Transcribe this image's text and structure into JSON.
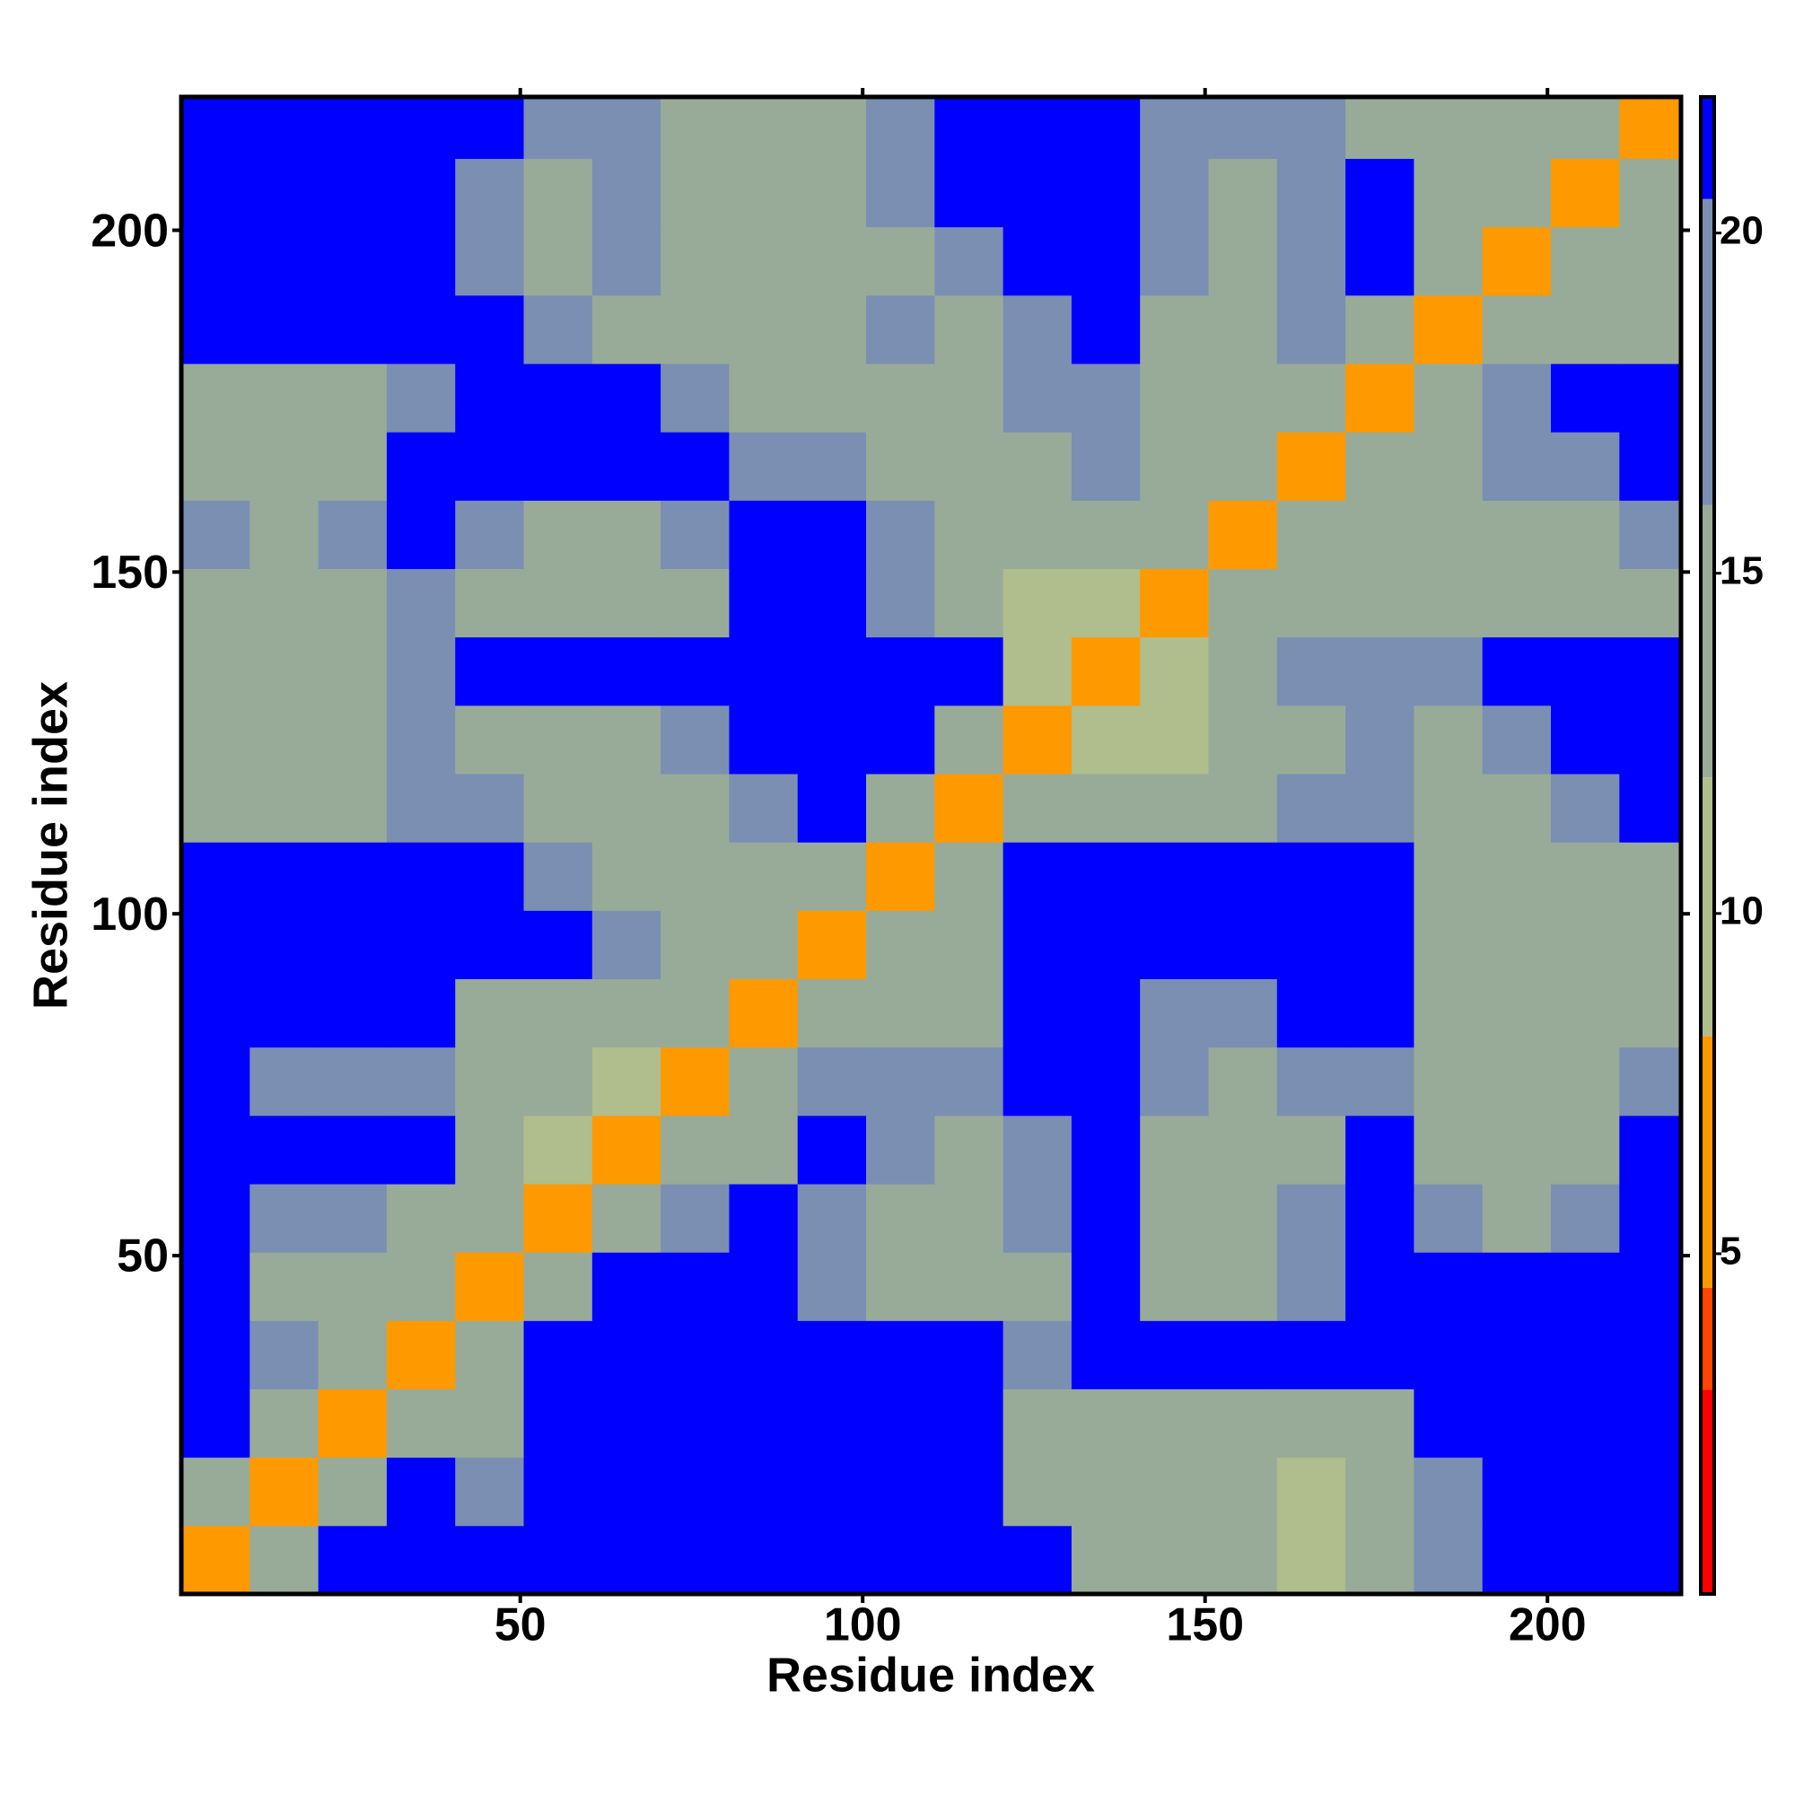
{
  "chart_data": {
    "type": "heatmap",
    "xlabel": "Residue index",
    "ylabel": "Residue index",
    "xlim": [
      0.5,
      219.5
    ],
    "ylim": [
      0.5,
      219.5
    ],
    "xticks": [
      50,
      100,
      150,
      200
    ],
    "yticks": [
      50,
      100,
      150,
      200
    ],
    "x_bins": [
      0.5,
      10.5,
      20.5,
      30.5,
      40.5,
      50.5,
      60.5,
      70.5,
      80.5,
      90.5,
      100.5,
      110.5,
      120.5,
      130.5,
      140.5,
      150.5,
      160.5,
      170.5,
      180.5,
      190.5,
      200.5,
      210.5,
      219.5
    ],
    "y_bins": [
      0.5,
      10.5,
      20.5,
      30.5,
      40.5,
      50.5,
      60.5,
      70.5,
      80.5,
      90.5,
      100.5,
      110.5,
      120.5,
      130.5,
      140.5,
      150.5,
      160.5,
      170.5,
      180.5,
      190.5,
      200.5,
      210.5,
      219.5
    ],
    "values": [
      [
        5,
        12,
        22,
        22,
        22,
        22,
        22,
        22,
        22,
        22,
        22,
        22,
        22,
        15,
        15,
        15,
        9,
        12,
        17,
        22,
        22,
        22
      ],
      [
        12,
        5,
        12,
        22,
        17,
        22,
        22,
        22,
        22,
        22,
        22,
        22,
        15,
        15,
        15,
        15,
        9,
        12,
        17,
        22,
        22,
        22
      ],
      [
        22,
        12,
        5,
        12,
        15,
        22,
        22,
        22,
        22,
        22,
        22,
        22,
        15,
        15,
        15,
        15,
        15,
        12,
        22,
        22,
        22,
        22
      ],
      [
        22,
        17,
        12,
        5,
        12,
        22,
        22,
        22,
        22,
        22,
        22,
        22,
        17,
        22,
        22,
        22,
        22,
        22,
        22,
        22,
        22,
        22
      ],
      [
        22,
        15,
        15,
        12,
        5,
        12,
        22,
        22,
        22,
        17,
        15,
        15,
        15,
        22,
        15,
        15,
        17,
        22,
        22,
        22,
        22,
        22
      ],
      [
        22,
        17,
        17,
        15,
        12,
        5,
        12,
        17,
        22,
        17,
        15,
        15,
        17,
        22,
        15,
        12,
        17,
        22,
        17,
        15,
        17,
        22
      ],
      [
        22,
        22,
        22,
        22,
        15,
        9,
        5,
        12,
        15,
        22,
        17,
        15,
        17,
        22,
        15,
        15,
        15,
        22,
        15,
        12,
        15,
        22
      ],
      [
        22,
        17,
        17,
        17,
        15,
        12,
        9,
        5,
        12,
        17,
        17,
        17,
        22,
        22,
        17,
        15,
        17,
        17,
        15,
        15,
        15,
        17
      ],
      [
        22,
        22,
        22,
        22,
        15,
        15,
        15,
        12,
        5,
        12,
        15,
        15,
        22,
        22,
        17,
        17,
        22,
        22,
        15,
        15,
        15,
        15
      ],
      [
        22,
        22,
        22,
        22,
        22,
        22,
        17,
        15,
        12,
        5,
        12,
        15,
        22,
        22,
        22,
        22,
        22,
        22,
        15,
        15,
        15,
        15
      ],
      [
        22,
        22,
        22,
        22,
        22,
        17,
        15,
        15,
        12,
        12,
        5,
        12,
        22,
        22,
        22,
        22,
        22,
        22,
        15,
        15,
        15,
        15
      ],
      [
        15,
        15,
        15,
        17,
        17,
        15,
        15,
        15,
        17,
        22,
        12,
        5,
        12,
        15,
        12,
        15,
        17,
        17,
        15,
        15,
        17,
        22
      ],
      [
        15,
        12,
        15,
        17,
        15,
        15,
        15,
        17,
        22,
        22,
        22,
        12,
        5,
        9,
        9,
        12,
        15,
        17,
        15,
        17,
        22,
        22
      ],
      [
        15,
        15,
        15,
        17,
        22,
        22,
        22,
        22,
        22,
        22,
        22,
        22,
        9,
        5,
        9,
        15,
        17,
        17,
        17,
        22,
        22,
        22
      ],
      [
        15,
        15,
        15,
        17,
        15,
        12,
        15,
        15,
        22,
        22,
        17,
        15,
        9,
        9,
        5,
        12,
        15,
        15,
        15,
        15,
        15,
        15
      ],
      [
        17,
        15,
        17,
        22,
        17,
        15,
        15,
        17,
        22,
        22,
        17,
        15,
        12,
        15,
        12,
        5,
        12,
        15,
        15,
        12,
        15,
        17
      ],
      [
        15,
        12,
        15,
        22,
        22,
        22,
        22,
        22,
        17,
        17,
        15,
        15,
        15,
        17,
        15,
        12,
        5,
        12,
        15,
        17,
        17,
        22
      ],
      [
        15,
        12,
        15,
        17,
        22,
        22,
        22,
        17,
        15,
        15,
        15,
        15,
        17,
        17,
        15,
        15,
        12,
        5,
        12,
        17,
        22,
        22
      ],
      [
        22,
        22,
        22,
        22,
        22,
        17,
        15,
        15,
        15,
        15,
        17,
        15,
        17,
        22,
        15,
        15,
        17,
        12,
        5,
        12,
        15,
        15
      ],
      [
        22,
        22,
        22,
        22,
        17,
        15,
        17,
        15,
        15,
        15,
        15,
        17,
        22,
        22,
        17,
        15,
        17,
        22,
        12,
        5,
        12,
        15
      ],
      [
        22,
        22,
        22,
        22,
        17,
        15,
        17,
        15,
        12,
        15,
        17,
        22,
        22,
        22,
        17,
        15,
        17,
        22,
        15,
        12,
        5,
        12
      ],
      [
        22,
        22,
        22,
        22,
        22,
        17,
        17,
        15,
        15,
        15,
        17,
        22,
        22,
        22,
        17,
        17,
        17,
        15,
        15,
        15,
        12,
        5
      ]
    ],
    "colorbar": {
      "clim": [
        0,
        22
      ],
      "ticks": [
        5,
        10,
        15,
        20
      ],
      "segments": [
        {
          "from": 0,
          "to": 3,
          "color": "#ff0000"
        },
        {
          "from": 3,
          "to": 4.5,
          "color": "#ff4500"
        },
        {
          "from": 4.5,
          "to": 8.2,
          "color": "#ff9900"
        },
        {
          "from": 8.2,
          "to": 12,
          "color": "#b0bd8c"
        },
        {
          "from": 12,
          "to": 16,
          "color": "#98ab98"
        },
        {
          "from": 16,
          "to": 20.5,
          "color": "#7b8fb2"
        },
        {
          "from": 20.5,
          "to": 22,
          "color": "#0000ff"
        }
      ]
    }
  }
}
